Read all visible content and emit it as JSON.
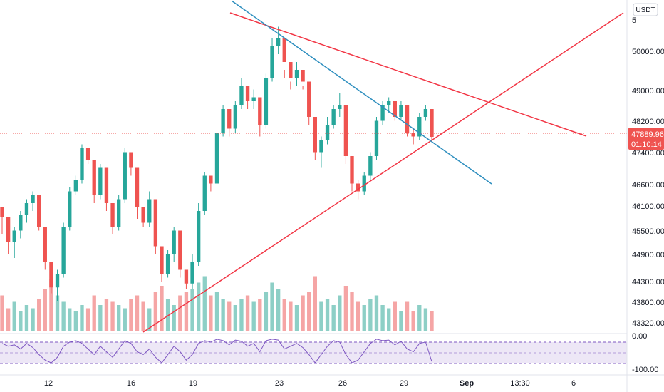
{
  "currency_label": "USDT",
  "price_axis": {
    "ticks": [
      "5",
      "50000.00",
      "49000.00",
      "48200.00",
      "47400.00",
      "46600.00",
      "46100.00",
      "45500.00",
      "44900.00",
      "44300.00",
      "43800.00",
      "43320.00"
    ],
    "ylim": [
      43320,
      51000
    ]
  },
  "last_price": {
    "value": "47889.96",
    "countdown": "01:10:14",
    "color": "#ef5350"
  },
  "osc_axis": {
    "ticks": [
      "0.00",
      "-100.00"
    ],
    "range": [
      -100,
      0
    ]
  },
  "time_axis": {
    "ticks": [
      "12",
      "16",
      "19",
      "23",
      "26",
      "29",
      "Sep",
      "13:30",
      "6"
    ]
  },
  "colors": {
    "up": "#26a69a",
    "down": "#ef5350",
    "up_volume": "#8dcfc6",
    "down_volume": "#f5a5a5",
    "trend_red": "#f23645",
    "trend_blue": "#2f8fbf",
    "osc_line": "#7e57c2",
    "osc_band": "#ede7f6"
  },
  "chart_data": [
    {
      "type": "candlestick",
      "title": "",
      "xlabel": "",
      "ylabel": "",
      "x_tick_labels": [
        "12",
        "16",
        "19",
        "23",
        "26",
        "29",
        "Sep",
        "13:30",
        "6"
      ],
      "ylim": [
        43320,
        51000
      ],
      "grid": false,
      "candles_ohlc": [
        [
          46100,
          45900,
          45400,
          45850
        ],
        [
          45850,
          45700,
          44900,
          45200
        ],
        [
          45200,
          45600,
          44800,
          45500
        ],
        [
          45500,
          46000,
          45300,
          45900
        ],
        [
          45900,
          46300,
          45700,
          46200
        ],
        [
          46200,
          46500,
          46000,
          46400
        ],
        [
          46400,
          46300,
          45500,
          45600
        ],
        [
          45600,
          45300,
          44500,
          44700
        ],
        [
          44700,
          44100,
          43900,
          44050
        ],
        [
          44050,
          44500,
          43700,
          44400
        ],
        [
          44400,
          45700,
          44300,
          45600
        ],
        [
          45600,
          46600,
          45500,
          46500
        ],
        [
          46500,
          46900,
          46400,
          46800
        ],
        [
          46800,
          47700,
          46700,
          47600
        ],
        [
          47600,
          47500,
          47200,
          47300
        ],
        [
          47300,
          46800,
          46200,
          46400
        ],
        [
          46400,
          47200,
          46300,
          47100
        ],
        [
          47100,
          46500,
          46000,
          46200
        ],
        [
          46200,
          46000,
          45400,
          45600
        ],
        [
          45600,
          46400,
          45500,
          46300
        ],
        [
          46300,
          47600,
          46200,
          47500
        ],
        [
          47500,
          47300,
          46900,
          47100
        ],
        [
          47100,
          46500,
          45800,
          46100
        ],
        [
          46100,
          45800,
          45600,
          45700
        ],
        [
          45700,
          46500,
          45600,
          46300
        ],
        [
          46300,
          45300,
          44900,
          45100
        ],
        [
          45100,
          44600,
          44200,
          44400
        ],
        [
          44400,
          45000,
          44300,
          44900
        ],
        [
          44900,
          45600,
          44700,
          45500
        ],
        [
          45500,
          44800,
          44300,
          44500
        ],
        [
          44500,
          44300,
          44000,
          44150
        ],
        [
          44150,
          44900,
          44000,
          44700
        ],
        [
          44700,
          46200,
          44600,
          46000
        ],
        [
          46000,
          47000,
          45900,
          46900
        ],
        [
          46900,
          46800,
          46500,
          46700
        ],
        [
          46700,
          48100,
          46600,
          48000
        ],
        [
          48000,
          48700,
          47900,
          48600
        ],
        [
          48600,
          48300,
          47900,
          48100
        ],
        [
          48100,
          48800,
          48000,
          48700
        ],
        [
          48700,
          49400,
          48600,
          49200
        ],
        [
          49200,
          49000,
          48600,
          48800
        ],
        [
          48800,
          49100,
          48600,
          48900
        ],
        [
          48900,
          48400,
          47900,
          48200
        ],
        [
          48200,
          49500,
          48100,
          49400
        ],
        [
          49400,
          50400,
          49300,
          50200
        ],
        [
          50200,
          50700,
          50000,
          50400
        ],
        [
          50400,
          49600,
          49400,
          49800
        ],
        [
          49800,
          49300,
          49100,
          49400
        ],
        [
          49400,
          49800,
          49200,
          49600
        ],
        [
          49600,
          49200,
          49100,
          49300
        ],
        [
          49300,
          48600,
          48200,
          48400
        ],
        [
          48400,
          47700,
          47300,
          47500
        ],
        [
          47500,
          47900,
          47100,
          47800
        ],
        [
          47800,
          48400,
          47700,
          48200
        ],
        [
          48200,
          48700,
          48100,
          48600
        ],
        [
          48600,
          49000,
          48400,
          48700
        ],
        [
          48700,
          48100,
          47200,
          47400
        ],
        [
          47400,
          47000,
          46500,
          46700
        ],
        [
          46700,
          46800,
          46300,
          46500
        ],
        [
          46500,
          47000,
          46400,
          46900
        ],
        [
          46900,
          47500,
          46800,
          47400
        ],
        [
          47400,
          48400,
          47300,
          48300
        ],
        [
          48300,
          48800,
          48200,
          48700
        ],
        [
          48700,
          48900,
          48500,
          48800
        ],
        [
          48800,
          48500,
          48300,
          48400
        ],
        [
          48400,
          48800,
          48300,
          48700
        ],
        [
          48700,
          48200,
          47900,
          48000
        ],
        [
          48000,
          48100,
          47700,
          47900
        ],
        [
          47900,
          48500,
          47800,
          48400
        ],
        [
          48400,
          48700,
          48300,
          48600
        ],
        [
          48600,
          48400,
          47800,
          47890
        ]
      ],
      "volume_relative": [
        0.55,
        0.35,
        0.45,
        0.3,
        0.4,
        0.35,
        0.5,
        0.65,
        0.8,
        0.55,
        0.45,
        0.35,
        0.3,
        0.4,
        0.35,
        0.55,
        0.4,
        0.5,
        0.45,
        0.4,
        0.35,
        0.5,
        0.55,
        0.45,
        0.35,
        0.6,
        0.7,
        0.5,
        0.4,
        0.55,
        0.6,
        0.65,
        0.75,
        0.85,
        0.55,
        0.6,
        0.5,
        0.45,
        0.4,
        0.5,
        0.55,
        0.45,
        0.5,
        0.6,
        0.75,
        0.65,
        0.5,
        0.45,
        0.4,
        0.55,
        0.6,
        0.85,
        0.45,
        0.5,
        0.4,
        0.55,
        0.7,
        0.6,
        0.45,
        0.4,
        0.5,
        0.55,
        0.4,
        0.35,
        0.45,
        0.3,
        0.45,
        0.3,
        0.4,
        0.35,
        0.3
      ],
      "oscillator": {
        "range": [
          -100,
          0
        ],
        "values": [
          -20,
          -30,
          -25,
          -40,
          -20,
          -35,
          -60,
          -80,
          -90,
          -70,
          -30,
          -15,
          -10,
          -20,
          -40,
          -60,
          -30,
          -50,
          -70,
          -40,
          -10,
          -20,
          -50,
          -60,
          -40,
          -70,
          -90,
          -60,
          -30,
          -50,
          -80,
          -60,
          -20,
          -10,
          -15,
          -5,
          -10,
          -25,
          -8,
          -12,
          -30,
          -20,
          -50,
          -10,
          -5,
          -8,
          -40,
          -30,
          -20,
          -35,
          -60,
          -90,
          -60,
          -30,
          -10,
          -15,
          -60,
          -90,
          -80,
          -50,
          -20,
          -5,
          -10,
          -8,
          -25,
          -12,
          -40,
          -50,
          -20,
          -15,
          -85
        ]
      }
    }
  ]
}
